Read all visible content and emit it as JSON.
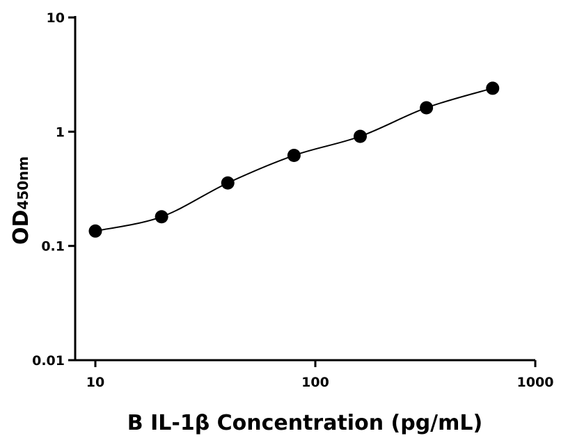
{
  "chart_data": {
    "type": "scatter",
    "title": "",
    "xlabel": "B IL-1β Concentration (pg/mL)",
    "ylabel": "OD",
    "ylabel_subscript": "450nm",
    "x_scale": "log",
    "y_scale": "log",
    "xlim": [
      8,
      1000
    ],
    "ylim": [
      0.01,
      10
    ],
    "x_ticks": [
      10,
      100,
      1000
    ],
    "x_tick_labels": [
      "10",
      "100",
      "1000"
    ],
    "y_ticks": [
      0.01,
      0.1,
      1,
      10
    ],
    "y_tick_labels": [
      "0.01",
      "0.1",
      "1",
      "10"
    ],
    "grid": false,
    "legend": "none",
    "series": [
      {
        "x": [
          10,
          20,
          40,
          80,
          160,
          320,
          640
        ],
        "y": [
          0.135,
          0.18,
          0.356,
          0.62,
          0.91,
          1.62,
          2.4
        ],
        "marker": "circle",
        "color": "#000000",
        "fit_curve": true
      }
    ]
  }
}
